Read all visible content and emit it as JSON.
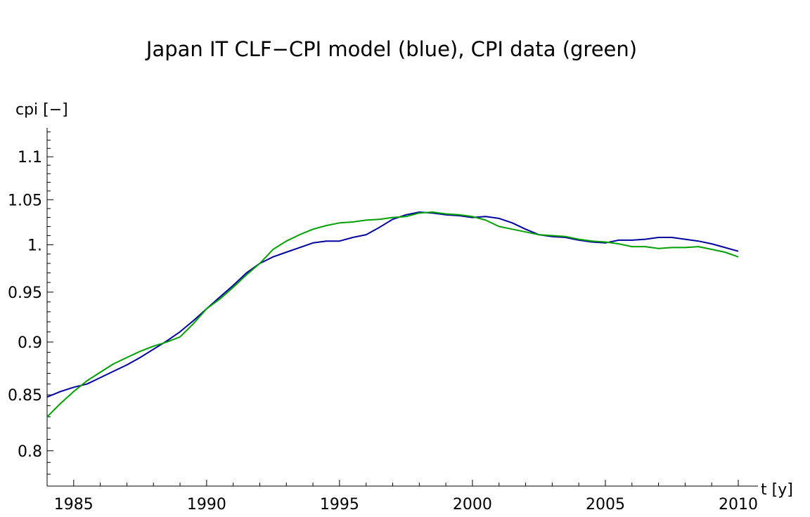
{
  "chart_data": {
    "type": "line",
    "title": "Japan IT CLF−CPI model (blue), CPI data (green)",
    "xlabel": "t [y]",
    "ylabel": "cpi [−]",
    "xlim": [
      1984.0,
      2010.3
    ],
    "ylim": [
      0.77,
      1.135
    ],
    "x_ticks": [
      1985,
      1990,
      1995,
      2000,
      2005,
      2010
    ],
    "x_tick_labels": [
      "1985",
      "1990",
      "1995",
      "2000",
      "2005",
      "2010"
    ],
    "y_ticks": [
      0.8,
      0.85,
      0.9,
      0.95,
      1.0,
      1.05,
      1.1
    ],
    "y_tick_labels": [
      "0.8",
      "0.85",
      "0.9",
      "0.95",
      "1.",
      "1.05",
      "1.1"
    ],
    "y_scale": "log",
    "grid": false,
    "legend": "none",
    "series": [
      {
        "color": "#0000a0",
        "x": [
          1984.0,
          1984.5,
          1985.0,
          1985.5,
          1986.0,
          1986.5,
          1987.0,
          1987.5,
          1988.0,
          1988.5,
          1989.0,
          1989.5,
          1990.0,
          1990.5,
          1991.0,
          1991.5,
          1992.0,
          1992.5,
          1993.0,
          1993.5,
          1994.0,
          1994.5,
          1995.0,
          1995.5,
          1996.0,
          1996.5,
          1997.0,
          1997.5,
          1998.0,
          1998.5,
          1999.0,
          1999.5,
          2000.0,
          2000.5,
          2001.0,
          2001.5,
          2002.0,
          2002.5,
          2003.0,
          2003.5,
          2004.0,
          2004.5,
          2005.0,
          2005.5,
          2006.0,
          2006.5,
          2007.0,
          2007.5,
          2008.0,
          2008.5,
          2009.0,
          2009.5,
          2010.0
        ],
        "y": [
          0.848,
          0.853,
          0.857,
          0.86,
          0.866,
          0.872,
          0.878,
          0.885,
          0.893,
          0.901,
          0.91,
          0.921,
          0.933,
          0.945,
          0.957,
          0.97,
          0.98,
          0.987,
          0.992,
          0.997,
          1.002,
          1.004,
          1.004,
          1.008,
          1.011,
          1.019,
          1.028,
          1.033,
          1.036,
          1.035,
          1.033,
          1.032,
          1.03,
          1.031,
          1.029,
          1.024,
          1.017,
          1.011,
          1.009,
          1.008,
          1.005,
          1.003,
          1.002,
          1.005,
          1.005,
          1.006,
          1.008,
          1.008,
          1.006,
          1.004,
          1.001,
          0.997,
          0.993
        ]
      },
      {
        "color": "#00a000",
        "x": [
          1984.0,
          1984.5,
          1985.0,
          1985.5,
          1986.0,
          1986.5,
          1987.0,
          1987.5,
          1988.0,
          1988.5,
          1989.0,
          1989.5,
          1990.0,
          1990.5,
          1991.0,
          1991.5,
          1992.0,
          1992.5,
          1993.0,
          1993.5,
          1994.0,
          1994.5,
          1995.0,
          1995.5,
          1996.0,
          1996.5,
          1997.0,
          1997.5,
          1998.0,
          1998.5,
          1999.0,
          1999.5,
          2000.0,
          2000.5,
          2001.0,
          2001.5,
          2002.0,
          2002.5,
          2003.0,
          2003.5,
          2004.0,
          2004.5,
          2005.0,
          2005.5,
          2006.0,
          2006.5,
          2007.0,
          2007.5,
          2008.0,
          2008.5,
          2009.0,
          2009.5,
          2010.0
        ],
        "y": [
          0.83,
          0.842,
          0.853,
          0.863,
          0.871,
          0.879,
          0.885,
          0.891,
          0.896,
          0.9,
          0.905,
          0.918,
          0.933,
          0.943,
          0.955,
          0.968,
          0.98,
          0.995,
          1.004,
          1.011,
          1.017,
          1.021,
          1.024,
          1.025,
          1.027,
          1.028,
          1.03,
          1.031,
          1.035,
          1.036,
          1.034,
          1.033,
          1.031,
          1.027,
          1.02,
          1.017,
          1.014,
          1.011,
          1.01,
          1.009,
          1.006,
          1.004,
          1.003,
          1.001,
          0.998,
          0.998,
          0.996,
          0.997,
          0.997,
          0.998,
          0.995,
          0.992,
          0.987
        ]
      }
    ]
  }
}
